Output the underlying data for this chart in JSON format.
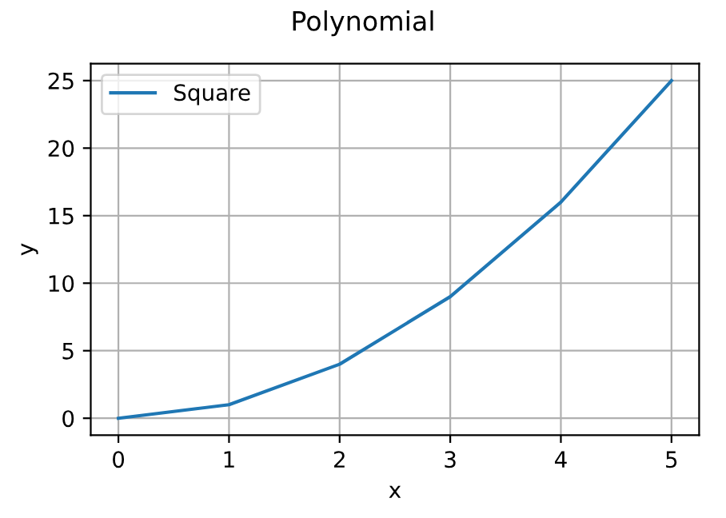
{
  "chart_data": {
    "type": "line",
    "title": "Polynomial",
    "xlabel": "x",
    "ylabel": "y",
    "x": [
      0,
      1,
      2,
      3,
      4,
      5
    ],
    "series": [
      {
        "name": "Square",
        "color": "#1f77b4",
        "values": [
          0,
          1,
          4,
          9,
          16,
          25
        ]
      }
    ],
    "xlim": [
      -0.25,
      5.25
    ],
    "ylim": [
      -1.25,
      26.25
    ],
    "xticks": [
      0,
      1,
      2,
      3,
      4,
      5
    ],
    "yticks": [
      0,
      5,
      10,
      15,
      20,
      25
    ],
    "grid": true,
    "legend": "top left"
  }
}
